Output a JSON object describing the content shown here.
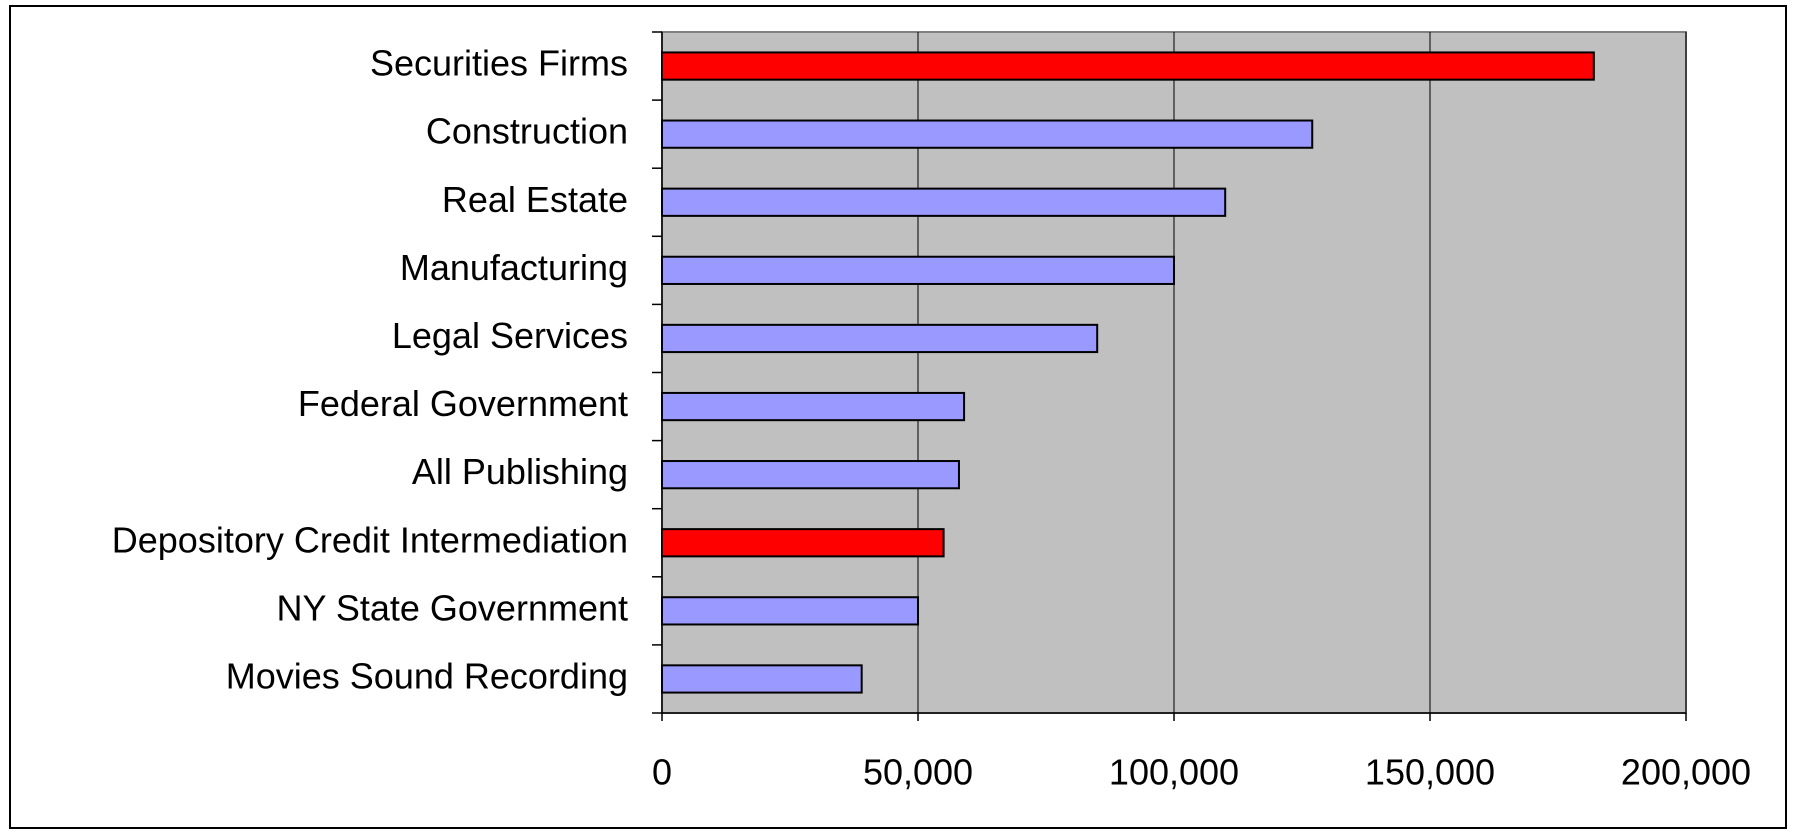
{
  "chart_data": {
    "type": "bar",
    "orientation": "horizontal",
    "categories": [
      "Securities Firms",
      "Construction",
      "Real Estate",
      "Manufacturing",
      "Legal Services",
      "Federal Government",
      "All Publishing",
      "Depository Credit Intermediation",
      "NY State Government",
      "Movies Sound Recording"
    ],
    "values": [
      182000,
      127000,
      110000,
      100000,
      85000,
      59000,
      58000,
      55000,
      50000,
      39000
    ],
    "colors": [
      "#ff0000",
      "#9999ff",
      "#9999ff",
      "#9999ff",
      "#9999ff",
      "#9999ff",
      "#9999ff",
      "#ff0000",
      "#9999ff",
      "#9999ff"
    ],
    "xlim": [
      0,
      200000
    ],
    "xticks": [
      0,
      {
        "value": 50000,
        "label": "50,000"
      },
      {
        "value": 100000,
        "label": "100,000"
      },
      {
        "value": 150000,
        "label": "150,000"
      },
      {
        "value": 200000,
        "label": "200,000"
      }
    ],
    "grid": true
  }
}
